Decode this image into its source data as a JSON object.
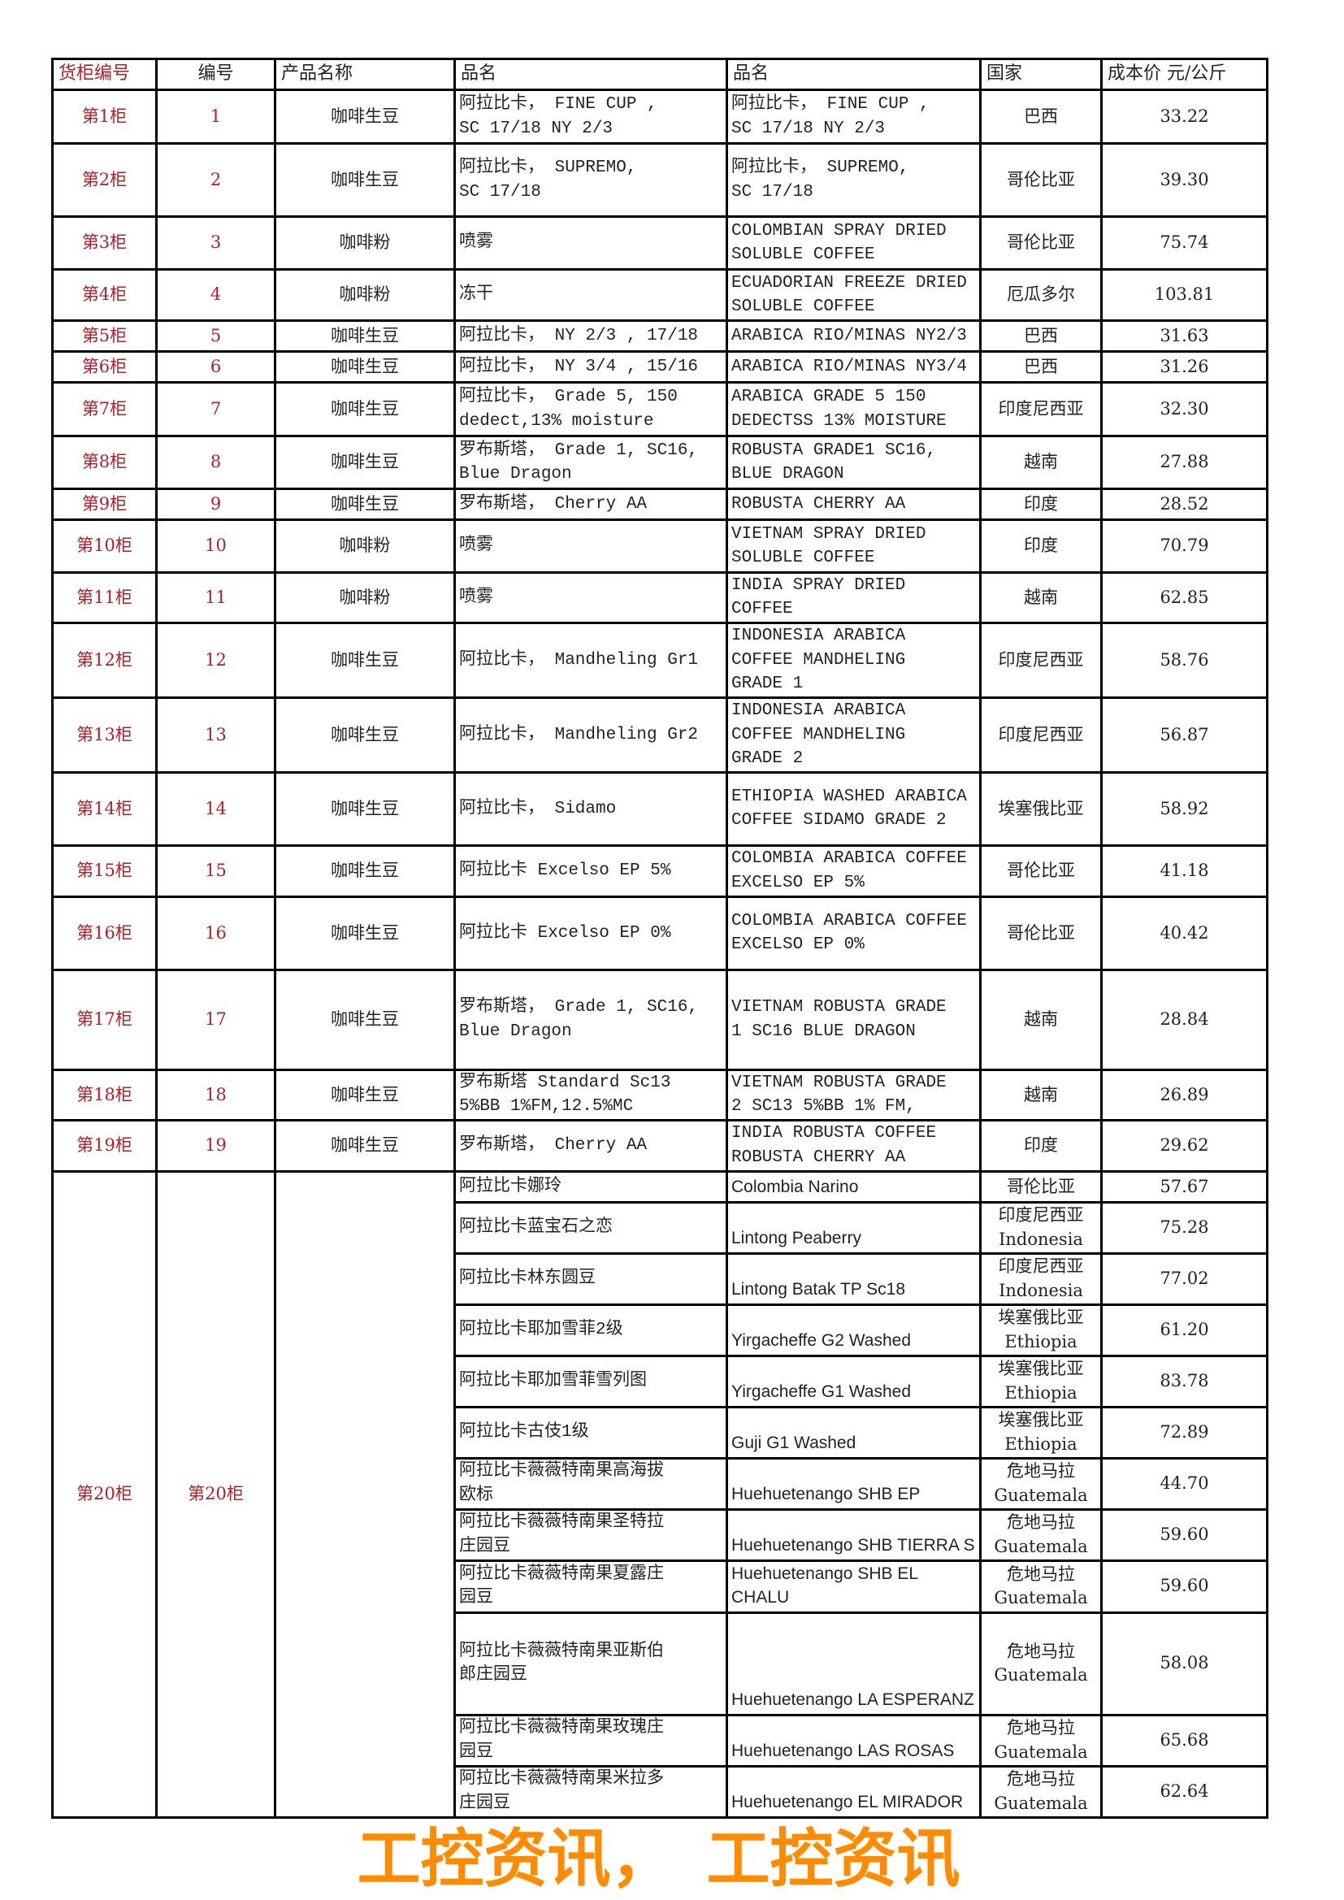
{
  "header": [
    "货柜编号",
    "编号",
    "产品名称",
    "品名",
    "品名",
    "国家",
    "成本价 元/公斤"
  ],
  "rows": [
    [
      "第1柜",
      "1",
      "咖啡生豆",
      "阿拉比卡， FINE CUP ,\nSC 17/18 NY 2/3",
      "阿拉比卡， FINE CUP ,\nSC 17/18 NY 2/3",
      "巴西",
      "33.22"
    ],
    [
      "第2柜",
      "2",
      "咖啡生豆",
      "阿拉比卡， SUPREMO,\nSC 17/18",
      "阿拉比卡， SUPREMO,\nSC 17/18",
      "哥伦比亚",
      "39.30"
    ],
    [
      "第3柜",
      "3",
      "咖啡粉",
      "喷雾",
      "COLOMBIAN SPRAY DRIED\nSOLUBLE COFFEE",
      "哥伦比亚",
      "75.74"
    ],
    [
      "第4柜",
      "4",
      "咖啡粉",
      "冻干",
      "ECUADORIAN FREEZE DRIED\nSOLUBLE COFFEE",
      "厄瓜多尔",
      "103.81"
    ],
    [
      "第5柜",
      "5",
      "咖啡生豆",
      "阿拉比卡， NY 2/3 , 17/18",
      "ARABICA RIO/MINAS NY2/3",
      "巴西",
      "31.63"
    ],
    [
      "第6柜",
      "6",
      "咖啡生豆",
      "阿拉比卡， NY 3/4 , 15/16",
      "ARABICA RIO/MINAS NY3/4",
      "巴西",
      "31.26"
    ],
    [
      "第7柜",
      "7",
      "咖啡生豆",
      "阿拉比卡， Grade 5, 150\ndedect,13% moisture",
      "ARABICA GRADE 5 150\nDEDECTSS 13% MOISTURE",
      "印度尼西亚",
      "32.30"
    ],
    [
      "第8柜",
      "8",
      "咖啡生豆",
      "罗布斯塔， Grade 1, SC16,\nBlue Dragon",
      "ROBUSTA  GRADE1  SC16,\nBLUE DRAGON",
      "越南",
      "27.88"
    ],
    [
      "第9柜",
      "9",
      "咖啡生豆",
      "罗布斯塔， Cherry AA",
      "ROBUSTA CHERRY AA",
      "印度",
      "28.52"
    ],
    [
      "第10柜",
      "10",
      "咖啡粉",
      "喷雾",
      "VIETNAM  SPRAY  DRIED\nSOLUBLE COFFEE",
      "印度",
      "70.79"
    ],
    [
      "第11柜",
      "11",
      "咖啡粉",
      "喷雾",
      "INDIA SPRAY DRIED\nCOFFEE",
      "越南",
      "62.85"
    ],
    [
      "第12柜",
      "12",
      "咖啡生豆",
      "阿拉比卡， Mandheling Gr1",
      "INDONESIA ARABICA\nCOFFEE  MANDHELING\nGRADE 1",
      "印度尼西亚",
      "58.76"
    ],
    [
      "第13柜",
      "13",
      "咖啡生豆",
      "阿拉比卡， Mandheling Gr2",
      "INDONESIA ARABICA\nCOFFEE  MANDHELING\nGRADE 2",
      "印度尼西亚",
      "56.87"
    ],
    [
      "第14柜",
      "14",
      "咖啡生豆",
      "阿拉比卡， Sidamo",
      "ETHIOPIA WASHED ARABICA\nCOFFEE SIDAMO GRADE 2",
      "埃塞俄比亚",
      "58.92"
    ],
    [
      "第15柜",
      "15",
      "咖啡生豆",
      "阿拉比卡 Excelso EP 5%",
      "COLOMBIA ARABICA COFFEE\nEXCELSO EP 5%",
      "哥伦比亚",
      "41.18"
    ],
    [
      "第16柜",
      "16",
      "咖啡生豆",
      "阿拉比卡 Excelso EP 0%",
      "COLOMBIA ARABICA COFFEE\nEXCELSO EP 0%",
      "哥伦比亚",
      "40.42"
    ],
    [
      "第17柜",
      "17",
      "咖啡生豆",
      "罗布斯塔， Grade 1, SC16,\nBlue Dragon",
      "VIETNAM ROBUSTA GRADE\n1  SC16  BLUE DRAGON",
      "越南",
      "28.84"
    ],
    [
      "第18柜",
      "18",
      "咖啡生豆",
      "罗布斯塔 Standard Sc13\n5%BB 1%FM,12.5%MC",
      "VIETNAM ROBUSTA GRADE\n2  SC13  5%BB  1% FM,",
      "越南",
      "26.89"
    ],
    [
      "第19柜",
      "19",
      "咖啡生豆",
      "罗布斯塔， Cherry AA",
      "INDIA ROBUSTA COFFEE\nROBUSTA CHERRY AA",
      "印度",
      "29.62"
    ]
  ],
  "group20": {
    "cabinet": "第20柜",
    "number": "第20柜",
    "product": "",
    "items": [
      [
        "阿拉比卡娜玲",
        "Colombia Narino",
        "哥伦比亚",
        "57.67"
      ],
      [
        "阿拉比卡蓝宝石之恋",
        "Lintong Peaberry",
        "印度尼西亚\nIndonesia",
        "75.28"
      ],
      [
        "阿拉比卡林东圆豆",
        "Lintong Batak TP Sc18",
        "印度尼西亚\nIndonesia",
        "77.02"
      ],
      [
        "阿拉比卡耶加雪菲2级",
        "Yirgacheffe G2 Washed",
        "埃塞俄比亚\nEthiopia",
        "61.20"
      ],
      [
        "阿拉比卡耶加雪菲雪列图",
        "Yirgacheffe G1 Washed",
        "埃塞俄比亚\nEthiopia",
        "83.78"
      ],
      [
        "阿拉比卡古伎1级",
        "Guji G1 Washed",
        "埃塞俄比亚\nEthiopia",
        "72.89"
      ],
      [
        "阿拉比卡薇薇特南果高海拔\n欧标",
        "Huehuetenango SHB EP",
        "危地马拉\nGuatemala",
        "44.70"
      ],
      [
        "阿拉比卡薇薇特南果圣特拉\n庄园豆",
        "Huehuetenango SHB TIERRA S",
        "危地马拉\nGuatemala",
        "59.60"
      ],
      [
        "阿拉比卡薇薇特南果夏露庄\n园豆",
        "Huehuetenango SHB EL CHALU",
        "危地马拉\nGuatemala",
        "59.60"
      ],
      [
        "阿拉比卡薇薇特南果亚斯伯\n郎庄园豆",
        "Huehuetenango LA ESPERANZ",
        "危地马拉\nGuatemala",
        "58.08"
      ],
      [
        "阿拉比卡薇薇特南果玫瑰庄\n园豆",
        "Huehuetenango LAS ROSAS",
        "危地马拉\nGuatemala",
        "65.68"
      ],
      [
        "阿拉比卡薇薇特南果米拉多\n庄园豆",
        "Huehuetenango EL MIRADOR",
        "危地马拉\nGuatemala",
        "62.64"
      ]
    ]
  },
  "colors": {
    "id_text": "#b0202a",
    "watermark": "#ff8c00"
  },
  "watermark": [
    "工控资讯，",
    "工控资讯"
  ]
}
